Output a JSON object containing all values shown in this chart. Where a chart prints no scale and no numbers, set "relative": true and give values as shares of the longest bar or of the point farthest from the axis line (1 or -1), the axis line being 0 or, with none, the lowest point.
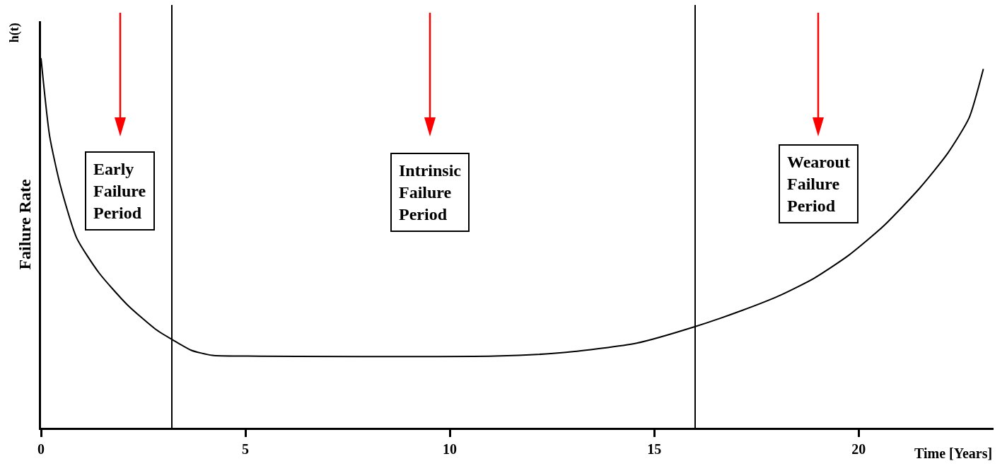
{
  "chart_data": {
    "type": "line",
    "relative": true,
    "ylabel": "Failure Rate",
    "xlabel": "Time [Years]",
    "x": [
      0,
      0.21,
      0.47,
      0.87,
      1.42,
      2.11,
      2.8,
      3.22,
      3.67,
      4.19,
      5.05,
      11.1,
      12.84,
      14.57,
      15.95,
      17.16,
      18.03,
      18.9,
      19.76,
      20.62,
      21.49,
      22.18,
      22.7,
      23.05
    ],
    "series": [
      {
        "color": "#000000",
        "values": [
          1.0,
          0.79,
          0.657,
          0.514,
          0.419,
          0.333,
          0.267,
          0.238,
          0.21,
          0.196,
          0.194,
          0.194,
          0.204,
          0.229,
          0.272,
          0.318,
          0.356,
          0.404,
          0.467,
          0.547,
          0.648,
          0.743,
          0.838,
          0.971
        ]
      }
    ],
    "xlim": [
      0,
      23.3
    ],
    "xticks": [
      0,
      5,
      10,
      15,
      20
    ],
    "ref_lines": [
      {
        "axis": "x",
        "value": 3.2,
        "color": "#000000"
      },
      {
        "axis": "x",
        "value": 16,
        "color": "#000000"
      }
    ],
    "annotations": [
      "h(t)",
      "Early\nFailure\nPeriod",
      "Intrinsic\nFailure\nPeriod",
      "Wearout\nFailure\nPeriod"
    ],
    "grid": false,
    "marker": "none",
    "line_style": "solid"
  }
}
